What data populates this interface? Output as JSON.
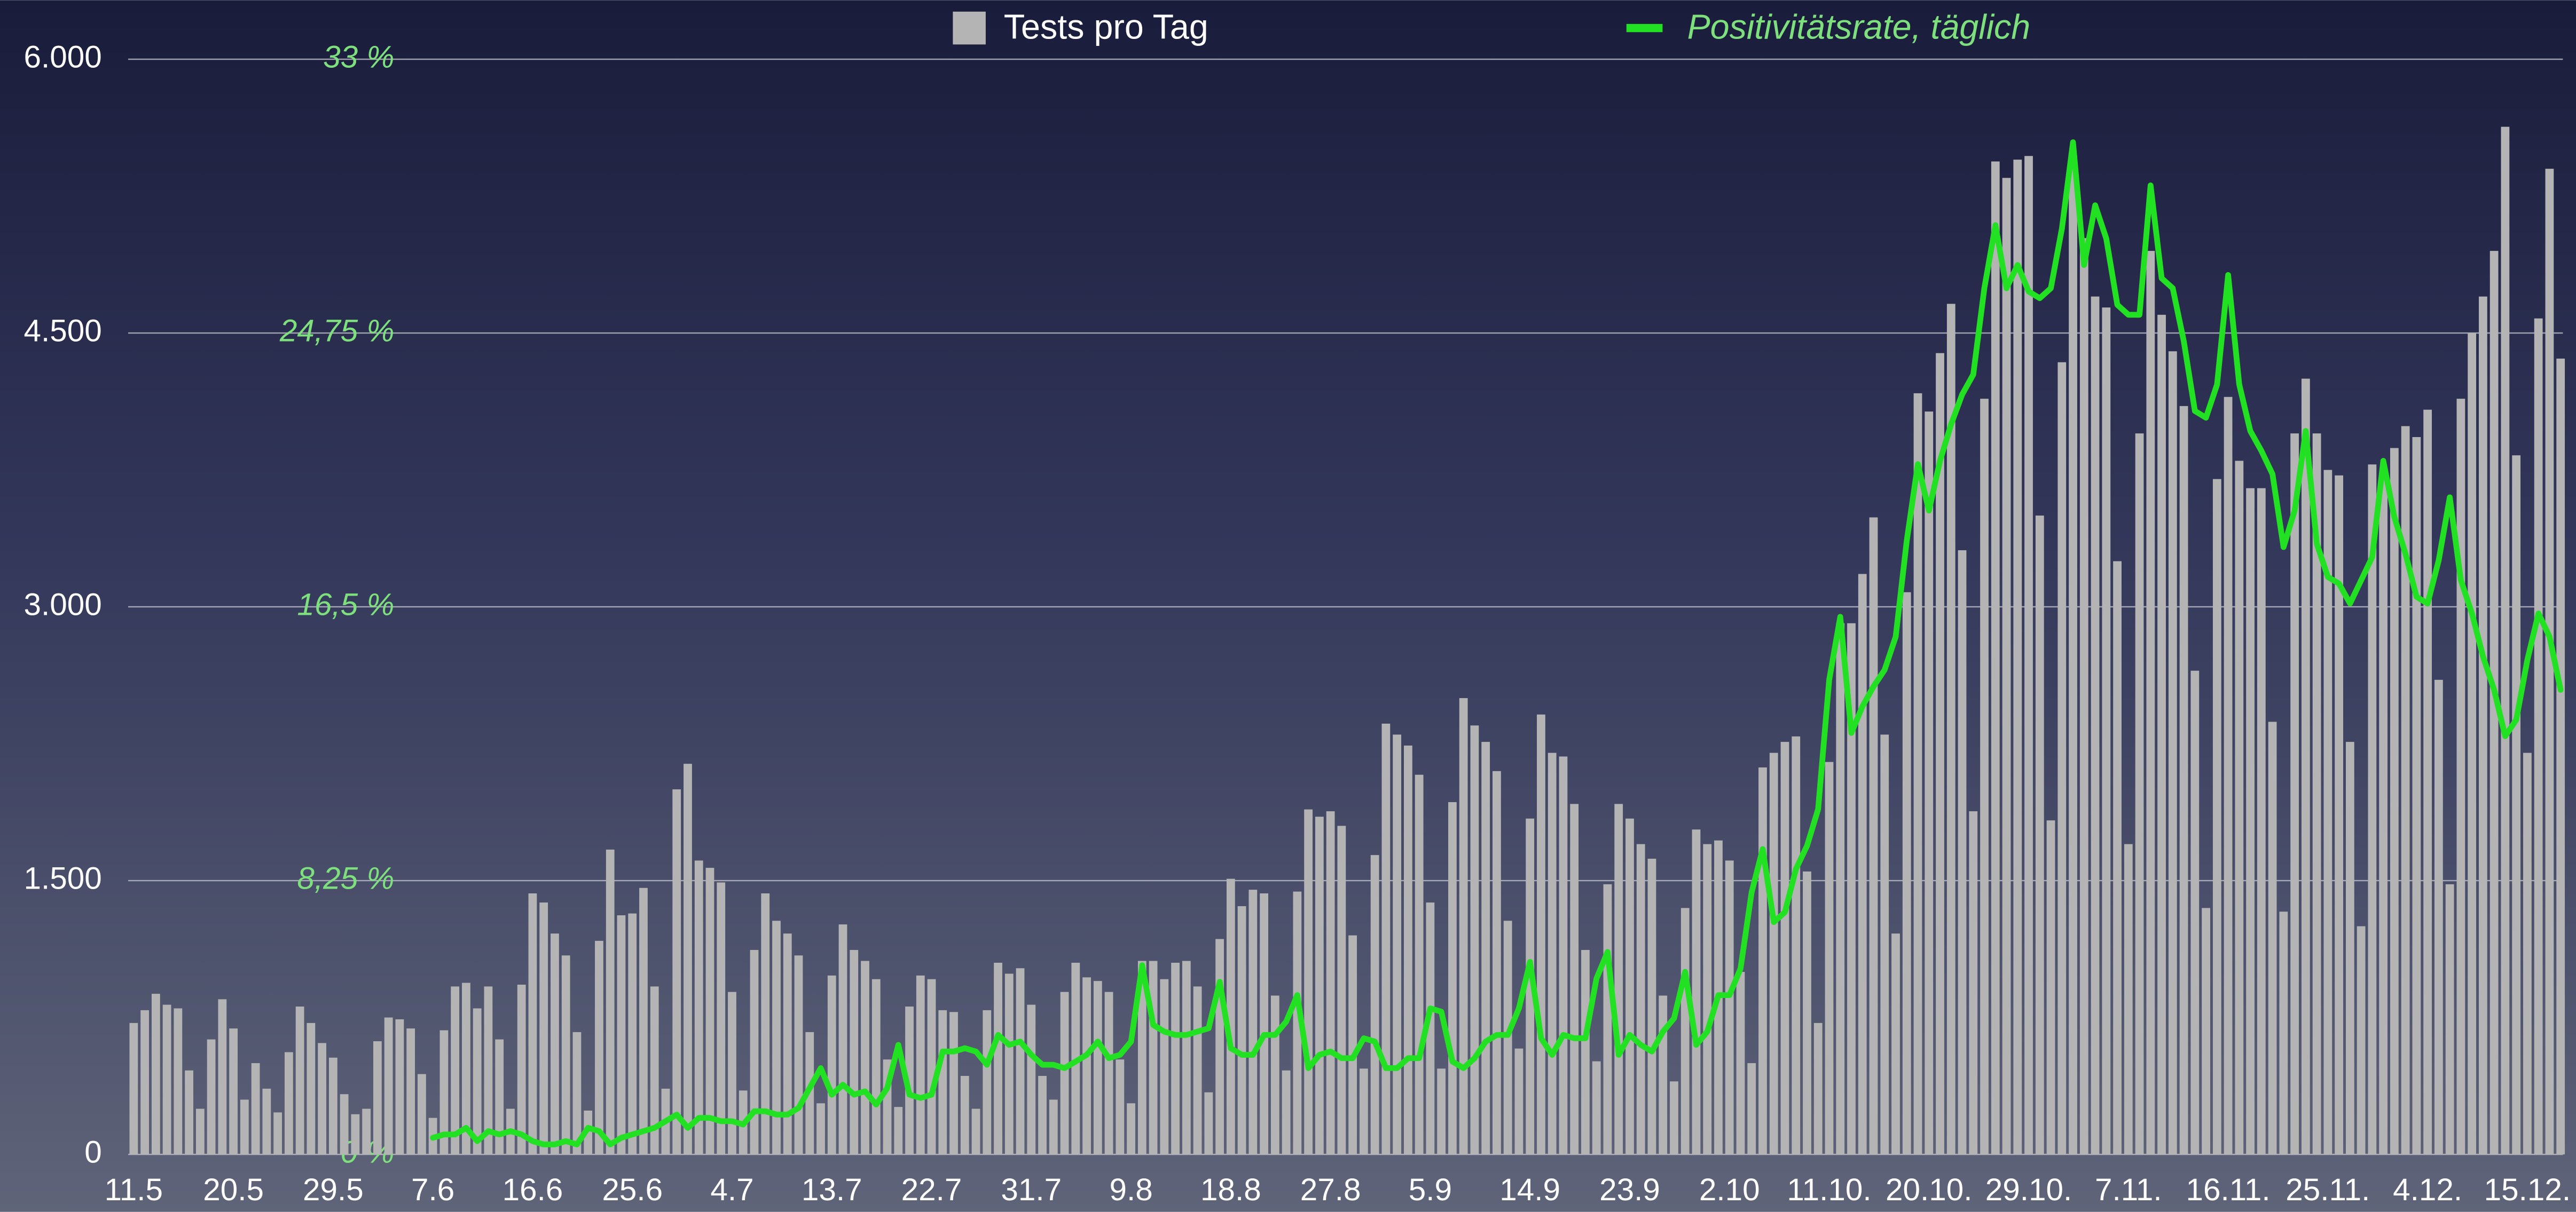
{
  "chart_data": {
    "type": "bar_line",
    "legend": "top",
    "categories": [
      "11.5",
      null,
      null,
      null,
      null,
      null,
      null,
      null,
      null,
      "20.5",
      null,
      null,
      null,
      null,
      null,
      null,
      null,
      null,
      "29.5",
      null,
      null,
      null,
      null,
      null,
      null,
      null,
      null,
      "7.6",
      null,
      null,
      null,
      null,
      null,
      null,
      null,
      null,
      "16.6",
      null,
      null,
      null,
      null,
      null,
      null,
      null,
      null,
      "25.6",
      null,
      null,
      null,
      null,
      null,
      null,
      null,
      null,
      "4.7",
      null,
      null,
      null,
      null,
      null,
      null,
      null,
      null,
      "13.7",
      null,
      null,
      null,
      null,
      null,
      null,
      null,
      null,
      "22.7",
      null,
      null,
      null,
      null,
      null,
      null,
      null,
      null,
      "31.7",
      null,
      null,
      null,
      null,
      null,
      null,
      null,
      null,
      "9.8",
      null,
      null,
      null,
      null,
      null,
      null,
      null,
      null,
      "18.8",
      null,
      null,
      null,
      null,
      null,
      null,
      null,
      null,
      "27.8",
      null,
      null,
      null,
      null,
      null,
      null,
      null,
      null,
      "5.9",
      null,
      null,
      null,
      null,
      null,
      null,
      null,
      null,
      "14.9",
      null,
      null,
      null,
      null,
      null,
      null,
      null,
      null,
      "23.9",
      null,
      null,
      null,
      null,
      null,
      null,
      null,
      null,
      "2.10",
      null,
      null,
      null,
      null,
      null,
      null,
      null,
      null,
      "11.10.",
      null,
      null,
      null,
      null,
      null,
      null,
      null,
      null,
      "20.10.",
      null,
      null,
      null,
      null,
      null,
      null,
      null,
      null,
      "29.10.",
      null,
      null,
      null,
      null,
      null,
      null,
      null,
      null,
      "7.11.",
      null,
      null,
      null,
      null,
      null,
      null,
      null,
      null,
      "16.11.",
      null,
      null,
      null,
      null,
      null,
      null,
      null,
      null,
      "25.11.",
      null,
      null,
      null,
      null,
      null,
      null,
      null,
      null,
      "4.12.",
      null,
      null,
      null,
      null,
      null,
      null,
      null,
      null,
      "15.12.",
      null,
      null,
      null
    ],
    "series": [
      {
        "name": "Tests pro Tag",
        "color": "#b4b4b4",
        "type": "bar",
        "values": [
          720,
          790,
          880,
          820,
          800,
          460,
          250,
          630,
          850,
          690,
          300,
          500,
          360,
          230,
          560,
          810,
          720,
          610,
          530,
          330,
          220,
          250,
          620,
          750,
          740,
          690,
          440,
          200,
          680,
          920,
          940,
          800,
          920,
          630,
          250,
          930,
          1430,
          1380,
          1210,
          1090,
          670,
          240,
          1170,
          1670,
          1310,
          1320,
          1460,
          920,
          360,
          2000,
          2140,
          1610,
          1570,
          1490,
          890,
          350,
          1120,
          1430,
          1280,
          1210,
          1090,
          670,
          280,
          980,
          1260,
          1120,
          1060,
          960,
          520,
          260,
          810,
          980,
          960,
          790,
          780,
          430,
          250,
          790,
          1050,
          990,
          1020,
          820,
          430,
          300,
          890,
          1050,
          970,
          950,
          890,
          520,
          280,
          1060,
          1060,
          960,
          1050,
          1060,
          920,
          340,
          1180,
          1510,
          1360,
          1450,
          1430,
          870,
          460,
          1440,
          1890,
          1850,
          1880,
          1800,
          1200,
          470,
          1640,
          2360,
          2300,
          2240,
          2080,
          1380,
          470,
          1930,
          2500,
          2350,
          2260,
          2100,
          1280,
          580,
          1840,
          2410,
          2200,
          2180,
          1920,
          1120,
          510,
          1480,
          1920,
          1840,
          1700,
          1620,
          870,
          400,
          1350,
          1780,
          1700,
          1720,
          1610,
          1000,
          500,
          2120,
          2200,
          2260,
          2290,
          1550,
          720,
          2150,
          2910,
          2910,
          3180,
          3490,
          2300,
          1210,
          3080,
          4170,
          4070,
          4390,
          4660,
          3310,
          1880,
          4140,
          5440,
          5350,
          5450,
          5470,
          3500,
          1830,
          4340,
          5470,
          5020,
          4700,
          4640,
          3250,
          1700,
          3950,
          4950,
          4600,
          4400,
          4100,
          2650,
          1350,
          3700,
          4150,
          3800,
          3650,
          3650,
          2370,
          1330,
          3950,
          4250,
          3950,
          3750,
          3720,
          2260,
          1250,
          3780,
          3720,
          3870,
          3990,
          3930,
          4080,
          2600,
          1480,
          4140,
          4500,
          4700,
          4950,
          5630,
          3830,
          2200,
          4580,
          5400,
          4360
        ]
      },
      {
        "name": "Positivitätsrate, täglich",
        "color": "#22e022",
        "type": "line",
        "axis": "y2",
        "values": [
          null,
          null,
          null,
          null,
          null,
          null,
          null,
          null,
          null,
          null,
          null,
          null,
          null,
          null,
          null,
          null,
          null,
          null,
          null,
          null,
          null,
          null,
          null,
          null,
          null,
          null,
          null,
          0.5,
          0.6,
          0.6,
          0.8,
          0.4,
          0.7,
          0.6,
          0.7,
          0.6,
          0.4,
          0.3,
          0.3,
          0.4,
          0.3,
          0.8,
          0.7,
          0.3,
          0.5,
          0.6,
          0.7,
          0.8,
          1.0,
          1.2,
          0.8,
          1.1,
          1.1,
          1.0,
          1.0,
          0.9,
          1.3,
          1.3,
          1.2,
          1.2,
          1.4,
          2.0,
          2.6,
          1.8,
          2.1,
          1.8,
          1.9,
          1.5,
          2.0,
          3.3,
          1.8,
          1.7,
          1.8,
          3.1,
          3.1,
          3.2,
          3.1,
          2.7,
          3.6,
          3.3,
          3.4,
          3.0,
          2.7,
          2.7,
          2.6,
          2.8,
          3.0,
          3.4,
          2.9,
          3.0,
          3.4,
          5.7,
          3.9,
          3.7,
          3.6,
          3.6,
          3.7,
          3.8,
          5.2,
          3.2,
          3.0,
          3.0,
          3.6,
          3.6,
          4.0,
          4.8,
          2.6,
          3.0,
          3.1,
          2.9,
          2.9,
          3.5,
          3.4,
          2.6,
          2.6,
          2.9,
          2.9,
          4.4,
          4.3,
          2.8,
          2.6,
          2.9,
          3.4,
          3.6,
          3.6,
          4.4,
          5.8,
          3.5,
          3.0,
          3.6,
          3.5,
          3.5,
          5.3,
          6.1,
          3.0,
          3.6,
          3.3,
          3.1,
          3.7,
          4.1,
          5.5,
          3.3,
          3.7,
          4.8,
          4.8,
          5.6,
          7.9,
          9.2,
          7.0,
          7.3,
          8.6,
          9.3,
          10.4,
          14.3,
          16.2,
          12.7,
          13.5,
          14.1,
          14.6,
          15.6,
          18.5,
          20.8,
          19.4,
          20.9,
          22.0,
          22.9,
          23.5,
          26.1,
          28.0,
          26.1,
          26.8,
          26.0,
          25.8,
          26.1,
          27.9,
          30.5,
          26.8,
          28.6,
          27.6,
          25.6,
          25.3,
          25.3,
          29.2,
          26.4,
          26.1,
          24.5,
          22.4,
          22.2,
          23.2,
          26.5,
          23.2,
          21.8,
          21.2,
          20.5,
          18.3,
          19.4,
          21.8,
          18.4,
          17.4,
          17.2,
          16.6,
          17.3,
          18.0,
          20.9,
          19.2,
          18.1,
          16.8,
          16.6,
          17.9,
          19.8,
          17.3,
          16.3,
          15.0,
          14.0,
          12.6,
          13.1,
          14.9,
          16.3,
          15.6,
          14.0
        ]
      }
    ],
    "ylim": [
      0,
      6000
    ],
    "yticks": [
      0,
      {
        "value": 1500,
        "label": "1.500"
      },
      {
        "value": 3000,
        "label": "3.000"
      },
      {
        "value": 4500,
        "label": "4.500"
      },
      {
        "value": 6000,
        "label": "6.000"
      }
    ],
    "y2lim": [
      0,
      33
    ],
    "y2ticks": [
      {
        "value": 0,
        "label": "0 %"
      },
      {
        "value": 8.25,
        "label": "8,25 %"
      },
      {
        "value": 16.5,
        "label": "16,5 %"
      },
      {
        "value": 24.75,
        "label": "24,75 %"
      },
      {
        "value": 33,
        "label": "33 %"
      }
    ],
    "grid": true
  }
}
